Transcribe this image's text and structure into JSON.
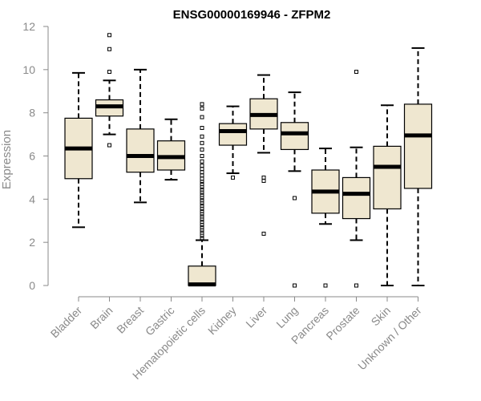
{
  "chart_data": {
    "type": "boxplot",
    "title": "ENSG00000169946 - ZFPM2",
    "xlabel": "",
    "ylabel": "Expression",
    "ylim": [
      0,
      12
    ],
    "yticks": [
      0,
      2,
      4,
      6,
      8,
      10,
      12
    ],
    "grid": false,
    "box_fill": "#efe7d0",
    "line_color": "#000000",
    "axis_color": "#8a8a8a",
    "categories": [
      "Bladder",
      "Brain",
      "Breast",
      "Gastric",
      "Hematopoietic cells",
      "Kidney",
      "Liver",
      "Lung",
      "Pancreas",
      "Prostate",
      "Skin",
      "Unknown / Other"
    ],
    "boxes": [
      {
        "name": "Bladder",
        "whisker_low": 2.7,
        "q1": 4.95,
        "median": 6.35,
        "q3": 7.75,
        "whisker_high": 9.85,
        "outliers": []
      },
      {
        "name": "Brain",
        "whisker_low": 7.0,
        "q1": 7.85,
        "median": 8.3,
        "q3": 8.6,
        "whisker_high": 9.5,
        "outliers": [
          6.5,
          9.9,
          10.95,
          11.6
        ]
      },
      {
        "name": "Breast",
        "whisker_low": 3.85,
        "q1": 5.25,
        "median": 6.0,
        "q3": 7.25,
        "whisker_high": 10.0,
        "outliers": []
      },
      {
        "name": "Gastric",
        "whisker_low": 4.9,
        "q1": 5.35,
        "median": 5.95,
        "q3": 6.7,
        "whisker_high": 7.7,
        "outliers": []
      },
      {
        "name": "Hematopoietic cells",
        "whisker_low": 0.0,
        "q1": 0.0,
        "median": 0.05,
        "q3": 0.9,
        "whisker_high": 2.1,
        "outliers": [
          2.2,
          2.3,
          2.45,
          2.55,
          2.7,
          2.8,
          2.95,
          3.05,
          3.2,
          3.3,
          3.45,
          3.55,
          3.7,
          3.8,
          3.95,
          4.05,
          4.2,
          4.3,
          4.45,
          4.55,
          4.7,
          4.8,
          4.95,
          5.1,
          5.25,
          5.4,
          5.55,
          5.75,
          6.0,
          6.3,
          6.6,
          6.9,
          7.3,
          7.8,
          8.2,
          8.4
        ]
      },
      {
        "name": "Kidney",
        "whisker_low": 5.2,
        "q1": 6.5,
        "median": 7.15,
        "q3": 7.5,
        "whisker_high": 8.3,
        "outliers": [
          5.0
        ]
      },
      {
        "name": "Liver",
        "whisker_low": 6.15,
        "q1": 7.25,
        "median": 7.9,
        "q3": 8.65,
        "whisker_high": 9.75,
        "outliers": [
          2.4,
          4.85,
          5.0
        ]
      },
      {
        "name": "Lung",
        "whisker_low": 5.3,
        "q1": 6.3,
        "median": 7.05,
        "q3": 7.55,
        "whisker_high": 8.95,
        "outliers": [
          0.0,
          4.05
        ]
      },
      {
        "name": "Pancreas",
        "whisker_low": 2.85,
        "q1": 3.35,
        "median": 4.35,
        "q3": 5.35,
        "whisker_high": 6.35,
        "outliers": [
          0.0
        ]
      },
      {
        "name": "Prostate",
        "whisker_low": 2.1,
        "q1": 3.1,
        "median": 4.25,
        "q3": 5.0,
        "whisker_high": 6.4,
        "outliers": [
          0.0,
          9.9
        ]
      },
      {
        "name": "Skin",
        "whisker_low": 0.0,
        "q1": 3.55,
        "median": 5.5,
        "q3": 6.45,
        "whisker_high": 8.35,
        "outliers": []
      },
      {
        "name": "Unknown / Other",
        "whisker_low": 0.0,
        "q1": 4.5,
        "median": 6.95,
        "q3": 8.4,
        "whisker_high": 11.0,
        "outliers": []
      }
    ]
  }
}
